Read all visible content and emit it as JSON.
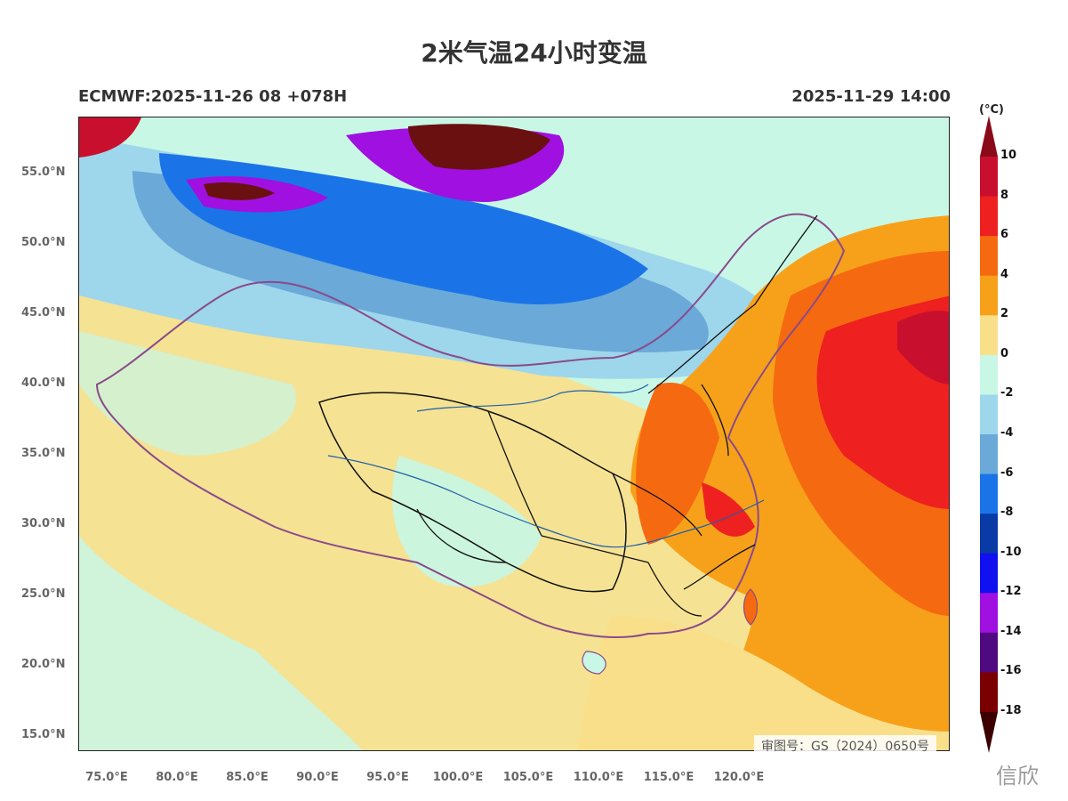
{
  "title": "2米气温24小时变温",
  "model_run": "ECMWF:2025-11-26 08 +078H",
  "valid_time": "2025-11-29 14:00",
  "unit": "(°C)",
  "map_note": "审图号：GS（2024）0650号",
  "watermark": "信欣",
  "lat_ticks": [
    "55.0°N",
    "50.0°N",
    "45.0°N",
    "40.0°N",
    "35.0°N",
    "30.0°N",
    "25.0°N",
    "20.0°N",
    "15.0°N"
  ],
  "lon_ticks": [
    "75.0°E",
    "80.0°E",
    "85.0°E",
    "90.0°E",
    "95.0°E",
    "100.0°E",
    "105.0°E",
    "110.0°E",
    "115.0°E",
    "120.0°E"
  ],
  "colorbar": {
    "labels": [
      "10",
      "8",
      "6",
      "4",
      "2",
      "0",
      "-2",
      "-4",
      "-6",
      "-8",
      "-10",
      "-12",
      "-14",
      "-16",
      "-18"
    ],
    "colors": [
      "#8b0a1a",
      "#c8102e",
      "#ee2020",
      "#f56a10",
      "#f7a11a",
      "#fadf8a",
      "#c8f7e6",
      "#9ed6ec",
      "#6aa9d8",
      "#1a74e8",
      "#0a3aa6",
      "#1010f0",
      "#a010e0",
      "#500a80",
      "#7a0000",
      "#3c0000"
    ]
  }
}
